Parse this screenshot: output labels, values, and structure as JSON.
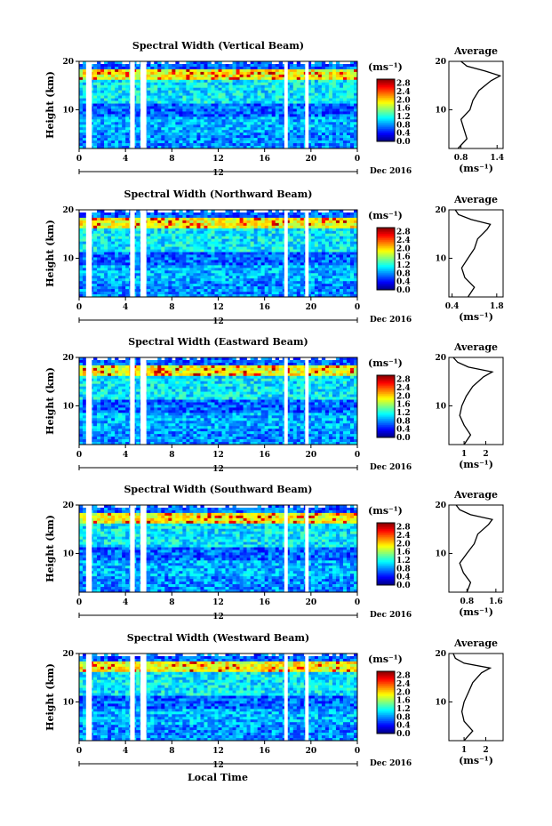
{
  "figure": {
    "xlabel": "Local Time",
    "date_label": "Dec 2016",
    "date_tick": "12",
    "ylabel": "Height (km)",
    "colorbar_unit": "(ms⁻¹)",
    "avg_title": "Average",
    "avg_xlabel": "(ms⁻¹)"
  },
  "chart_data": [
    {
      "type": "heatmap",
      "title": "Spectral Width (Vertical Beam)",
      "x_ticks": [
        "0",
        "4",
        "8",
        "12",
        "16",
        "20",
        "0"
      ],
      "xlim": [
        0,
        24
      ],
      "y_ticks": [
        "20",
        "10"
      ],
      "ylim": [
        2,
        20
      ],
      "colorbar_ticks": [
        "2.8",
        "2.4",
        "2.0",
        "1.6",
        "1.2",
        "0.8",
        "0.4",
        "0.0"
      ],
      "colorbar_range": [
        0,
        3
      ],
      "data_gaps_hours": [
        [
          0.6,
          1.1
        ],
        [
          4.4,
          4.8
        ],
        [
          5.3,
          5.8
        ],
        [
          17.7,
          18.0
        ],
        [
          19.5,
          19.8
        ]
      ],
      "average_profile": {
        "x_ticks": [
          "0.8",
          "1.4"
        ],
        "xlim": [
          0.6,
          1.5
        ],
        "height_km": [
          2,
          4,
          6,
          8,
          10,
          12,
          14,
          16,
          17,
          18,
          19,
          20
        ],
        "width_ms": [
          0.75,
          0.9,
          0.85,
          0.8,
          0.95,
          1.0,
          1.1,
          1.3,
          1.45,
          1.2,
          0.9,
          0.8
        ]
      }
    },
    {
      "type": "heatmap",
      "title": "Spectral Width (Northward Beam)",
      "x_ticks": [
        "0",
        "4",
        "8",
        "12",
        "16",
        "20",
        "0"
      ],
      "xlim": [
        0,
        24
      ],
      "y_ticks": [
        "20",
        "10"
      ],
      "ylim": [
        2,
        20
      ],
      "colorbar_ticks": [
        "2.8",
        "2.4",
        "2.0",
        "1.6",
        "1.2",
        "0.8",
        "0.4",
        "0.0"
      ],
      "colorbar_range": [
        0,
        3
      ],
      "data_gaps_hours": [
        [
          0.6,
          1.1
        ],
        [
          4.4,
          4.8
        ],
        [
          5.3,
          5.8
        ],
        [
          17.7,
          18.0
        ],
        [
          19.5,
          19.8
        ]
      ],
      "average_profile": {
        "x_ticks": [
          "0.4",
          "1.8"
        ],
        "xlim": [
          0.3,
          2.0
        ],
        "height_km": [
          2,
          4,
          6,
          8,
          10,
          12,
          14,
          16,
          17,
          18,
          19,
          20
        ],
        "width_ms": [
          0.9,
          1.1,
          0.8,
          0.7,
          0.9,
          1.1,
          1.2,
          1.5,
          1.6,
          1.0,
          0.6,
          0.5
        ]
      }
    },
    {
      "type": "heatmap",
      "title": "Spectral Width (Eastward Beam)",
      "x_ticks": [
        "0",
        "4",
        "8",
        "12",
        "16",
        "20",
        "0"
      ],
      "xlim": [
        0,
        24
      ],
      "y_ticks": [
        "20",
        "10"
      ],
      "ylim": [
        2,
        20
      ],
      "colorbar_ticks": [
        "2.8",
        "2.4",
        "2.0",
        "1.6",
        "1.2",
        "0.8",
        "0.4",
        "0.0"
      ],
      "colorbar_range": [
        0,
        3
      ],
      "data_gaps_hours": [
        [
          0.6,
          1.1
        ],
        [
          4.4,
          4.8
        ],
        [
          5.3,
          5.8
        ],
        [
          17.7,
          18.0
        ],
        [
          19.5,
          19.8
        ]
      ],
      "average_profile": {
        "x_ticks": [
          "1",
          "2"
        ],
        "xlim": [
          0.3,
          2.8
        ],
        "height_km": [
          2,
          4,
          6,
          8,
          10,
          12,
          14,
          16,
          17,
          18,
          19,
          20
        ],
        "width_ms": [
          1.0,
          1.3,
          1.0,
          0.8,
          0.9,
          1.1,
          1.4,
          1.9,
          2.3,
          1.2,
          0.7,
          0.5
        ]
      }
    },
    {
      "type": "heatmap",
      "title": "Spectral Width (Southward Beam)",
      "x_ticks": [
        "0",
        "4",
        "8",
        "12",
        "16",
        "20",
        "0"
      ],
      "xlim": [
        0,
        24
      ],
      "y_ticks": [
        "20",
        "10"
      ],
      "ylim": [
        2,
        20
      ],
      "colorbar_ticks": [
        "2.8",
        "2.4",
        "2.0",
        "1.6",
        "1.2",
        "0.8",
        "0.4",
        "0.0"
      ],
      "colorbar_range": [
        0,
        3
      ],
      "data_gaps_hours": [
        [
          0.6,
          1.1
        ],
        [
          4.4,
          4.8
        ],
        [
          5.3,
          5.8
        ],
        [
          17.7,
          18.0
        ],
        [
          19.5,
          19.8
        ]
      ],
      "average_profile": {
        "x_ticks": [
          "0.8",
          "1.6"
        ],
        "xlim": [
          0.3,
          1.8
        ],
        "height_km": [
          2,
          4,
          6,
          8,
          10,
          12,
          14,
          16,
          17,
          18,
          19,
          20
        ],
        "width_ms": [
          0.8,
          0.9,
          0.7,
          0.6,
          0.8,
          1.0,
          1.1,
          1.4,
          1.5,
          0.9,
          0.6,
          0.5
        ]
      }
    },
    {
      "type": "heatmap",
      "title": "Spectral Width (Westward Beam)",
      "x_ticks": [
        "0",
        "4",
        "8",
        "12",
        "16",
        "20",
        "0"
      ],
      "xlim": [
        0,
        24
      ],
      "y_ticks": [
        "20",
        "10"
      ],
      "ylim": [
        2,
        20
      ],
      "colorbar_ticks": [
        "2.8",
        "2.4",
        "2.0",
        "1.6",
        "1.2",
        "0.8",
        "0.4",
        "0.0"
      ],
      "colorbar_range": [
        0,
        3
      ],
      "data_gaps_hours": [
        [
          0.6,
          1.1
        ],
        [
          4.4,
          4.8
        ],
        [
          5.3,
          5.8
        ],
        [
          17.7,
          18.0
        ],
        [
          19.5,
          19.8
        ]
      ],
      "average_profile": {
        "x_ticks": [
          "1",
          "2"
        ],
        "xlim": [
          0.3,
          2.8
        ],
        "height_km": [
          2,
          4,
          6,
          8,
          10,
          12,
          14,
          16,
          17,
          18,
          19,
          20
        ],
        "width_ms": [
          1.0,
          1.4,
          1.0,
          0.9,
          1.0,
          1.2,
          1.4,
          1.8,
          2.2,
          1.0,
          0.6,
          0.5
        ]
      }
    }
  ]
}
